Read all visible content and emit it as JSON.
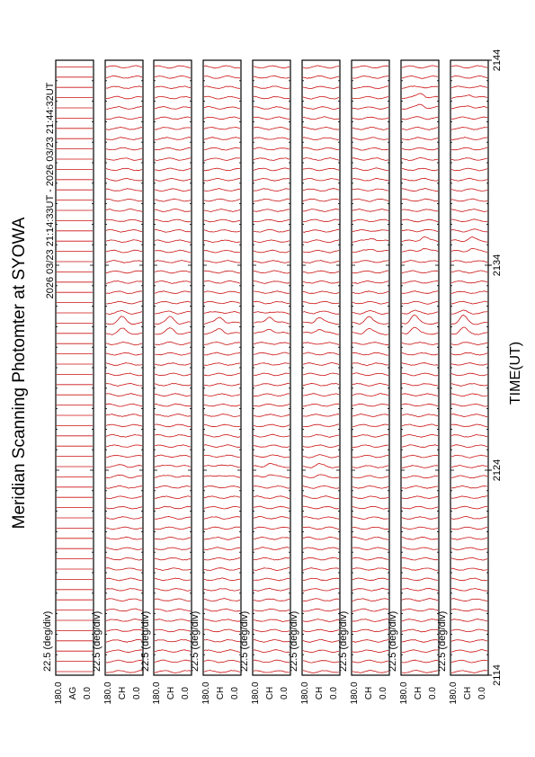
{
  "title": "Meridian Scanning Photomter at SYOWA",
  "time_range": "2026 03/23 21:14:33UT - 2026 03/23 21:44:32UT",
  "xlabel": "TIME(UT)",
  "x_ticks": [
    "2114",
    "2124",
    "2134",
    "2144"
  ],
  "scale_label": "22.5 (deg/div)",
  "y_top_label": "180.0",
  "y_bottom_label": "0.0",
  "colors": {
    "trace": "#cc1111",
    "frame": "#000000"
  },
  "chart_data": {
    "type": "line",
    "title": "Meridian Scanning Photomter at SYOWA",
    "xlabel": "TIME(UT)",
    "x_range": [
      "21:14",
      "21:44"
    ],
    "y_range": [
      0.0,
      180.0
    ],
    "scale": "22.5 (deg/div)",
    "panels": [
      {
        "channel": "AG",
        "peaks": []
      },
      {
        "channel": "CH",
        "peaks": [
          {
            "time": "21:31",
            "deg": 80,
            "amp": 0.5
          },
          {
            "time": "21:24",
            "deg": 85,
            "amp": 0.15
          }
        ]
      },
      {
        "channel": "CH",
        "peaks": [
          {
            "time": "21:31",
            "deg": 80,
            "amp": 0.55
          },
          {
            "time": "21:24",
            "deg": 82,
            "amp": 0.2
          }
        ]
      },
      {
        "channel": "CH",
        "peaks": [
          {
            "time": "21:31",
            "deg": 80,
            "amp": 0.55
          },
          {
            "time": "21:24",
            "deg": 80,
            "amp": 0.25
          }
        ]
      },
      {
        "channel": "CH",
        "peaks": [
          {
            "time": "21:31",
            "deg": 80,
            "amp": 0.6
          },
          {
            "time": "21:24",
            "deg": 78,
            "amp": 0.3
          }
        ]
      },
      {
        "channel": "CH",
        "peaks": [
          {
            "time": "21:31",
            "deg": 80,
            "amp": 0.55
          },
          {
            "time": "21:24",
            "deg": 80,
            "amp": 0.2
          }
        ]
      },
      {
        "channel": "CH",
        "peaks": [
          {
            "time": "21:31",
            "deg": 80,
            "amp": 0.55
          },
          {
            "time": "21:35",
            "deg": 100,
            "amp": 0.3
          }
        ]
      },
      {
        "channel": "CH",
        "peaks": [
          {
            "time": "21:31",
            "deg": 60,
            "amp": 0.7
          },
          {
            "time": "21:35",
            "deg": 110,
            "amp": 0.4
          },
          {
            "time": "21:42",
            "deg": 95,
            "amp": 0.4
          }
        ]
      },
      {
        "channel": "CH",
        "peaks": [
          {
            "time": "21:31",
            "deg": 60,
            "amp": 0.6
          },
          {
            "time": "21:35",
            "deg": 100,
            "amp": 0.35
          },
          {
            "time": "21:42",
            "deg": 90,
            "amp": 0.3
          }
        ]
      }
    ]
  }
}
